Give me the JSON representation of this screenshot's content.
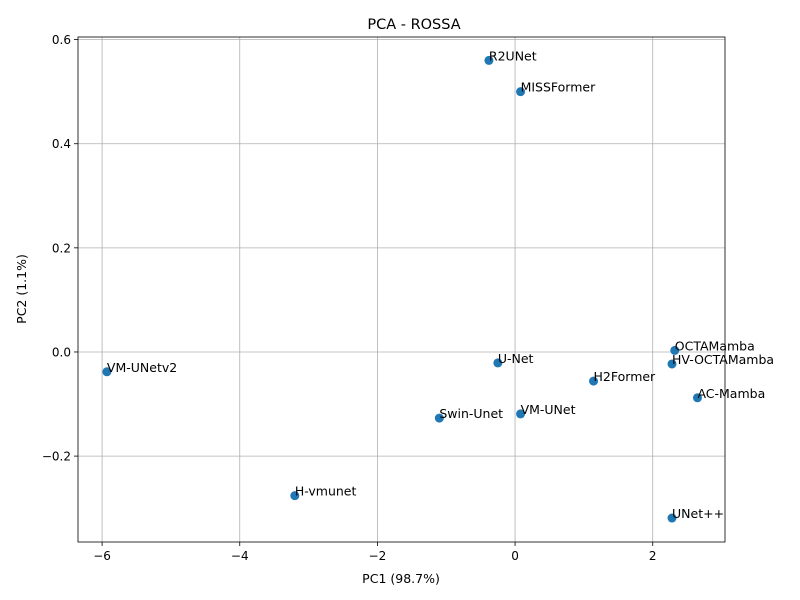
{
  "chart_data": {
    "type": "scatter",
    "title": "PCA - ROSSA",
    "xlabel": "PC1 (98.7%)",
    "ylabel": "PC2 (1.1%)",
    "xlim": [
      -6.35,
      3.05
    ],
    "ylim": [
      -0.365,
      0.605
    ],
    "xticks": [
      -6,
      -4,
      -2,
      0,
      2
    ],
    "xtick_labels": [
      "−6",
      "−4",
      "−2",
      "0",
      "2"
    ],
    "yticks": [
      -0.2,
      0.0,
      0.2,
      0.4,
      0.6
    ],
    "ytick_labels": [
      "−0.2",
      "0.0",
      "0.2",
      "0.4",
      "0.6"
    ],
    "grid": true,
    "marker_color": "#1f77b4",
    "points": [
      {
        "label": "R2UNet",
        "x": -0.38,
        "y": 0.56
      },
      {
        "label": "MISSFormer",
        "x": 0.08,
        "y": 0.5
      },
      {
        "label": "OCTAMamba",
        "x": 2.32,
        "y": 0.003
      },
      {
        "label": "HV-OCTAMamba",
        "x": 2.28,
        "y": -0.023
      },
      {
        "label": "U-Net",
        "x": -0.25,
        "y": -0.021
      },
      {
        "label": "VM-UNetv2",
        "x": -5.93,
        "y": -0.038
      },
      {
        "label": "H2Former",
        "x": 1.14,
        "y": -0.056
      },
      {
        "label": "AC-Mamba",
        "x": 2.65,
        "y": -0.088
      },
      {
        "label": "VM-UNet",
        "x": 0.08,
        "y": -0.119
      },
      {
        "label": "Swin-Unet",
        "x": -1.1,
        "y": -0.127
      },
      {
        "label": "H-vmunet",
        "x": -3.2,
        "y": -0.276
      },
      {
        "label": "UNet++",
        "x": 2.28,
        "y": -0.319
      }
    ]
  }
}
